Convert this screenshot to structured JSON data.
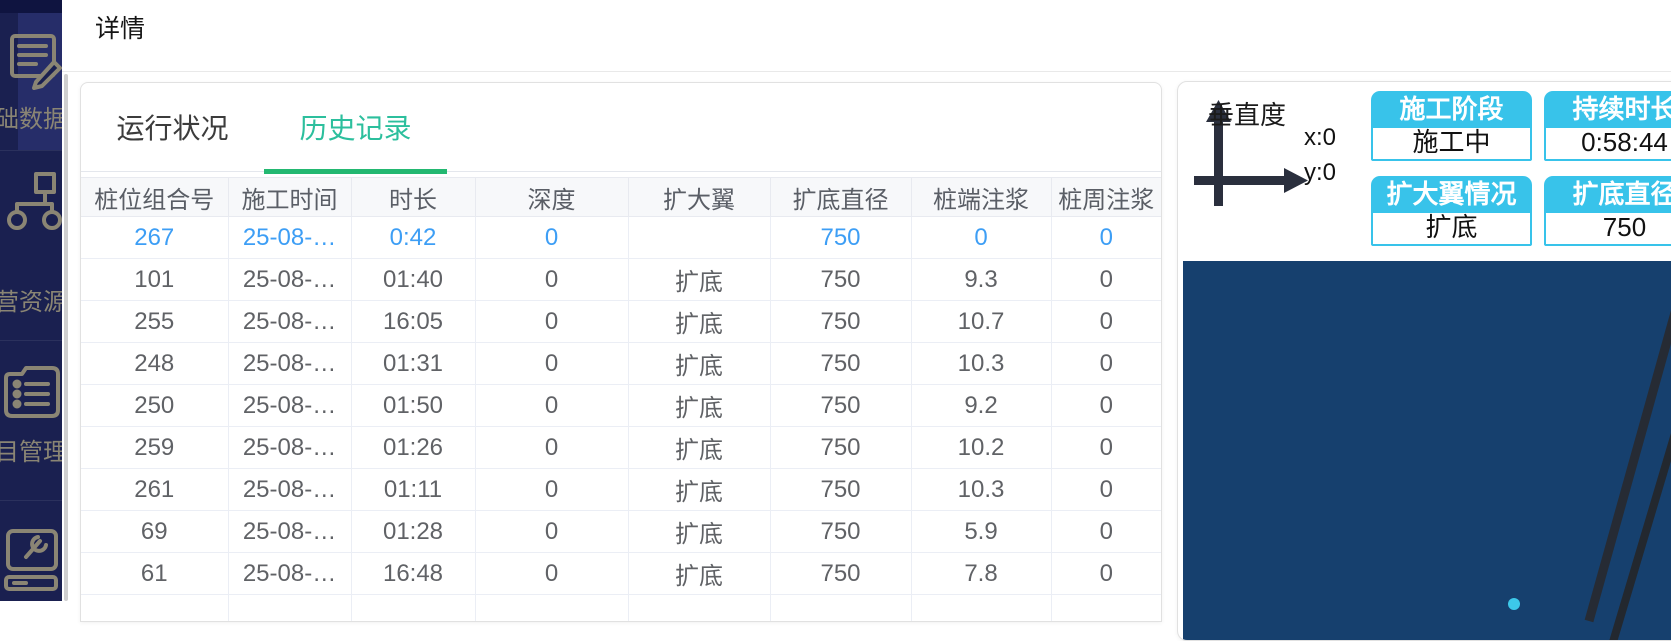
{
  "colors": {
    "sidebar_bg": "#1a2050",
    "sidebar_highlight": "#262d69",
    "accent_teal": "#2cbf9d",
    "tab_underline": "#23b871",
    "link_blue": "#3d9ef5",
    "status_card_cyan": "#38c3ea",
    "video_navy": "#16406e"
  },
  "sidebar": {
    "items": [
      {
        "icon": "document-edit-icon",
        "label": "础数据"
      },
      {
        "icon": "network-nodes-icon",
        "label": "营资源"
      },
      {
        "icon": "clipboard-list-icon",
        "label": "目管理"
      },
      {
        "icon": "wrench-icon",
        "label": ""
      }
    ]
  },
  "header": {
    "title": "详情"
  },
  "tabs": [
    {
      "label": "运行状况",
      "active": false
    },
    {
      "label": "历史记录",
      "active": true
    }
  ],
  "table": {
    "columns": [
      "桩位组合号",
      "施工时间",
      "时长",
      "深度",
      "扩大翼",
      "扩底直径",
      "桩端注浆",
      "桩周注浆"
    ],
    "rows": [
      {
        "highlight": true,
        "cells": [
          "267",
          "25-08-…",
          "0:42",
          "0",
          "",
          "750",
          "0",
          "0"
        ]
      },
      {
        "highlight": false,
        "cells": [
          "101",
          "25-08-…",
          "01:40",
          "0",
          "扩底",
          "750",
          "9.3",
          "0"
        ]
      },
      {
        "highlight": false,
        "cells": [
          "255",
          "25-08-…",
          "16:05",
          "0",
          "扩底",
          "750",
          "10.7",
          "0"
        ]
      },
      {
        "highlight": false,
        "cells": [
          "248",
          "25-08-…",
          "01:31",
          "0",
          "扩底",
          "750",
          "10.3",
          "0"
        ]
      },
      {
        "highlight": false,
        "cells": [
          "250",
          "25-08-…",
          "01:50",
          "0",
          "扩底",
          "750",
          "9.2",
          "0"
        ]
      },
      {
        "highlight": false,
        "cells": [
          "259",
          "25-08-…",
          "01:26",
          "0",
          "扩底",
          "750",
          "10.2",
          "0"
        ]
      },
      {
        "highlight": false,
        "cells": [
          "261",
          "25-08-…",
          "01:11",
          "0",
          "扩底",
          "750",
          "10.3",
          "0"
        ]
      },
      {
        "highlight": false,
        "cells": [
          "69",
          "25-08-…",
          "01:28",
          "0",
          "扩底",
          "750",
          "5.9",
          "0"
        ]
      },
      {
        "highlight": false,
        "cells": [
          "61",
          "25-08-…",
          "16:48",
          "0",
          "扩底",
          "750",
          "7.8",
          "0"
        ]
      }
    ]
  },
  "right_panel": {
    "verticality": {
      "label": "垂直度",
      "x_value": "x:0",
      "y_value": "y:0"
    },
    "status_cards": [
      {
        "title": "施工阶段",
        "value": "施工中"
      },
      {
        "title": "持续时长",
        "value": "0:58:44"
      },
      {
        "title": "扩大翼情况",
        "value": "扩底"
      },
      {
        "title": "扩底直径",
        "value": "750"
      }
    ]
  }
}
